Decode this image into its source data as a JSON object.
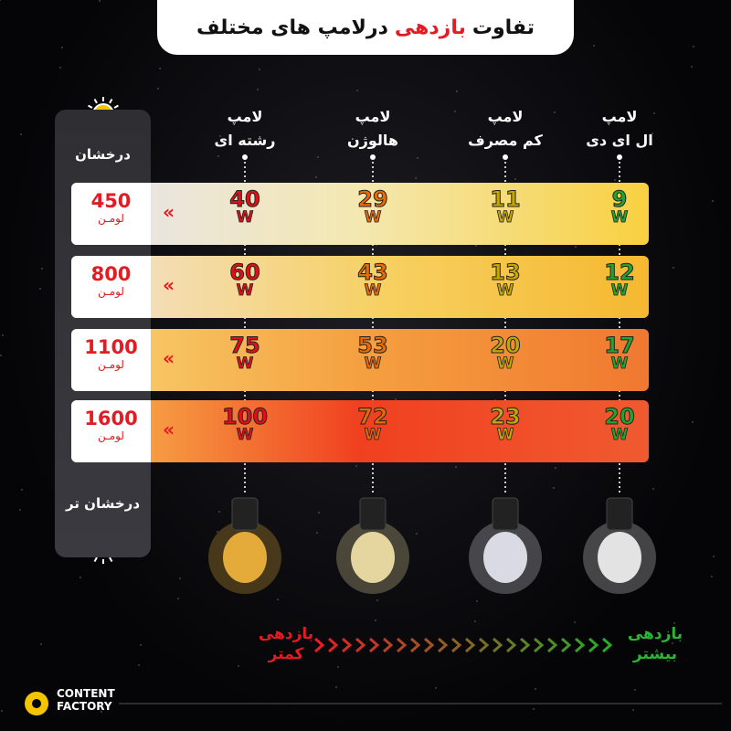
{
  "header": {
    "title_start": "تفاوت",
    "title_highlight": "بازدهی",
    "title_end": "درلامپ های مختلف"
  },
  "lamps": [
    {
      "name": "لامپ",
      "type": "ال ای دی"
    },
    {
      "name": "لامپ",
      "type": "کم مصرف"
    },
    {
      "name": "لامپ",
      "type": "هالوژن"
    },
    {
      "name": "لامپ",
      "type": "رشته ای"
    }
  ],
  "brightness": {
    "top": "درخشان",
    "bottom": "درخشان تر"
  },
  "rows": [
    {
      "lumens": 450,
      "unit": "لومـن",
      "watts": [
        9,
        11,
        29,
        40
      ]
    },
    {
      "lumens": 800,
      "unit": "لومـن",
      "watts": [
        12,
        13,
        43,
        60
      ]
    },
    {
      "lumens": 1100,
      "unit": "لومـن",
      "watts": [
        17,
        20,
        53,
        75
      ]
    },
    {
      "lumens": 1600,
      "unit": "لومـن",
      "watts": [
        20,
        23,
        72,
        100
      ]
    }
  ],
  "watt_unit": "W",
  "efficiency": {
    "high": "بازدهی بیشتر",
    "low": "بازدهی کمتر"
  },
  "logo": {
    "line1": "CONTENT",
    "line2": "FACTORY"
  }
}
